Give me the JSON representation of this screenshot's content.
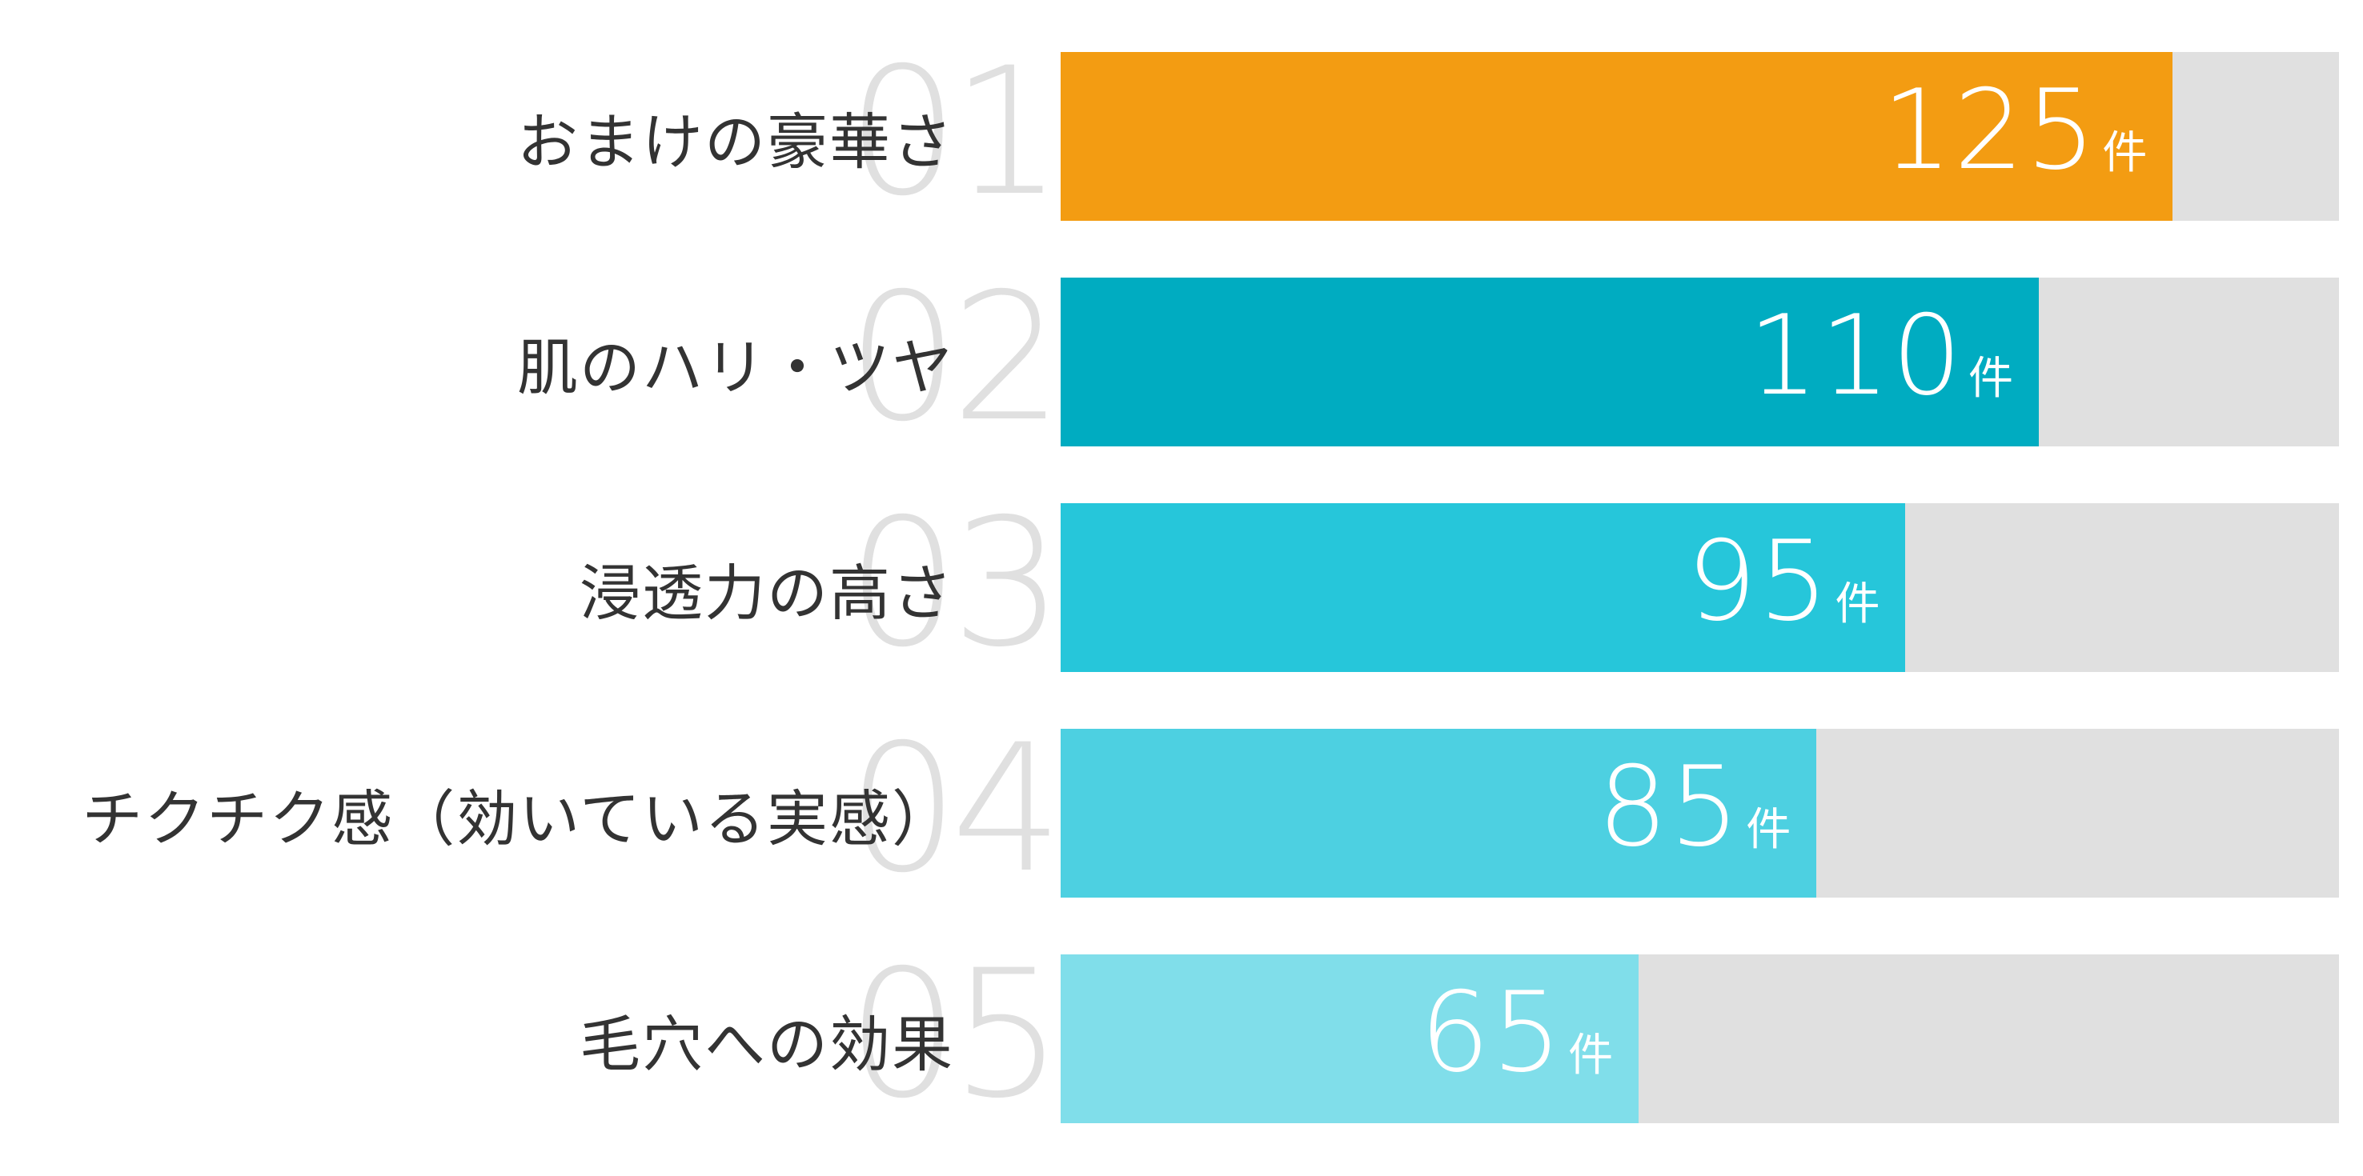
{
  "chart_data": {
    "type": "bar",
    "orientation": "horizontal",
    "title": "",
    "xlabel": "",
    "ylabel": "",
    "unit": "件",
    "xlim": [
      0,
      143.75
    ],
    "grid": false,
    "legend": "none",
    "categories": [
      "おまけの豪華さ",
      "肌のハリ・ツヤ",
      "浸透力の高さ",
      "チクチク感（効いている実感）",
      "毛穴への効果"
    ],
    "ranks": [
      "01",
      "02",
      "03",
      "04",
      "05"
    ],
    "values": [
      125,
      110,
      95,
      85,
      65
    ],
    "colors": [
      "#F39C12",
      "#00ACC1",
      "#26C6DA",
      "#4DD0E1",
      "#80DEEA"
    ],
    "track_color": "#E0E0E0"
  },
  "rows": [
    {
      "rank": "01",
      "label": "おまけの豪華さ",
      "value": "125",
      "unit": "件",
      "pct": "87%",
      "color": "#F39C12"
    },
    {
      "rank": "02",
      "label": "肌のハリ・ツヤ",
      "value": "110",
      "unit": "件",
      "pct": "76.52%",
      "color": "#00ACC1"
    },
    {
      "rank": "03",
      "label": "浸透力の高さ",
      "value": "95",
      "unit": "件",
      "pct": "66.09%",
      "color": "#26C6DA"
    },
    {
      "rank": "04",
      "label": "チクチク感（効いている実感）",
      "value": "85",
      "unit": "件",
      "pct": "59.13%",
      "color": "#4DD0E1"
    },
    {
      "rank": "05",
      "label": "毛穴への効果",
      "value": "65",
      "unit": "件",
      "pct": "45.22%",
      "color": "#80DEEA"
    }
  ]
}
